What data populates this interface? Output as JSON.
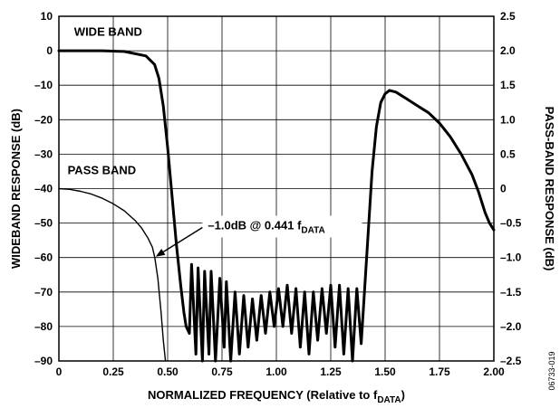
{
  "chart_data": {
    "type": "line",
    "title": "",
    "xlabel": "NORMALIZED FREQUENCY (Relative to f",
    "xlabel_sub": "DATA",
    "xlabel_suffix": ")",
    "ylabel_left": "WIDEBAND RESPONSE (dB)",
    "ylabel_right": "PASS-BAND RESPONSE (dB)",
    "xlim": [
      0,
      2.0
    ],
    "ylim_left": [
      -90,
      10
    ],
    "ylim_right": [
      -2.5,
      2.5
    ],
    "grid": true,
    "x_ticks": [
      "0",
      "0.25",
      "0.50",
      "0.75",
      "1.00",
      "1.25",
      "1.50",
      "1.75",
      "2.00"
    ],
    "y_ticks_left": [
      "10",
      "0",
      "–10",
      "–20",
      "–30",
      "–40",
      "–50",
      "–60",
      "–70",
      "–80",
      "–90"
    ],
    "y_ticks_right": [
      "2.5",
      "2.0",
      "1.5",
      "1.0",
      "0.5",
      "0",
      "–0.5",
      "–1.0",
      "–1.5",
      "–2.0",
      "–2.5"
    ],
    "series": [
      {
        "name": "WIDE BAND",
        "axis": "left",
        "x": [
          0,
          0.1,
          0.2,
          0.3,
          0.4,
          0.44,
          0.46,
          0.48,
          0.5,
          0.52,
          0.54,
          0.56,
          0.575,
          0.585,
          0.6,
          0.61,
          0.63,
          0.64,
          0.66,
          0.67,
          0.69,
          0.7,
          0.72,
          0.74,
          0.76,
          0.77,
          0.79,
          0.81,
          0.83,
          0.85,
          0.87,
          0.89,
          0.91,
          0.93,
          0.95,
          0.97,
          0.99,
          1.01,
          1.03,
          1.05,
          1.07,
          1.09,
          1.11,
          1.13,
          1.15,
          1.17,
          1.19,
          1.21,
          1.23,
          1.25,
          1.27,
          1.29,
          1.31,
          1.33,
          1.35,
          1.37,
          1.39,
          1.405,
          1.42,
          1.44,
          1.46,
          1.48,
          1.5,
          1.52,
          1.55,
          1.6,
          1.65,
          1.7,
          1.75,
          1.8,
          1.85,
          1.9,
          1.93,
          1.96,
          1.98,
          2.0
        ],
        "values": [
          0,
          0,
          0,
          -0.2,
          -1.5,
          -4,
          -8,
          -16,
          -28,
          -42,
          -56,
          -68,
          -76,
          -80,
          -82,
          -62,
          -88,
          -63,
          -90,
          -64,
          -88,
          -64,
          -90,
          -66,
          -86,
          -67,
          -90,
          -70,
          -88,
          -71,
          -86,
          -72,
          -84,
          -71,
          -82,
          -70,
          -80,
          -69,
          -80,
          -68,
          -82,
          -69,
          -86,
          -70,
          -88,
          -70,
          -84,
          -69,
          -82,
          -68,
          -86,
          -68,
          -88,
          -69,
          -90,
          -69,
          -85,
          -70,
          -55,
          -35,
          -22,
          -15,
          -12.5,
          -11.5,
          -12,
          -14,
          -16,
          -18,
          -21,
          -25,
          -30,
          -36,
          -41,
          -47,
          -50,
          -52
        ]
      },
      {
        "name": "PASS BAND",
        "axis": "right",
        "x": [
          0,
          0.05,
          0.1,
          0.15,
          0.2,
          0.25,
          0.3,
          0.35,
          0.38,
          0.41,
          0.43,
          0.441,
          0.455,
          0.47,
          0.48,
          0.49
        ],
        "values": [
          0.0,
          -0.01,
          -0.04,
          -0.08,
          -0.14,
          -0.22,
          -0.32,
          -0.46,
          -0.57,
          -0.72,
          -0.85,
          -1.0,
          -1.3,
          -1.8,
          -2.2,
          -2.5
        ]
      }
    ],
    "annotations": [
      {
        "text": "–1.0dB @ 0.441 f",
        "sub": "DATA",
        "x": 0.441,
        "y_right": -1.0
      }
    ]
  },
  "labels": {
    "wide_band": "WIDE BAND",
    "pass_band": "PASS BAND"
  },
  "figure_id": "06733-019"
}
